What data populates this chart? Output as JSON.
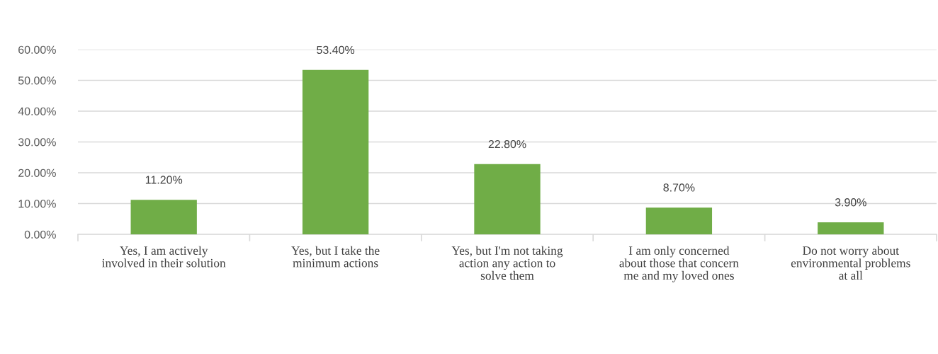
{
  "chart_data": {
    "type": "bar",
    "categories": [
      "Yes, I am actively\ninvolved in their solution",
      "Yes, but I take the\nminimum actions",
      "Yes, but I'm not taking\naction any action to\nsolve them",
      "I am only concerned\nabout those that concern\nme and my loved ones",
      "Do not worry about\nenvironmental problems\nat all"
    ],
    "values": [
      11.2,
      53.4,
      22.8,
      8.7,
      3.9
    ],
    "color": "#70ad47",
    "value_labels": [
      "11.20%",
      "53.40%",
      "22.80%",
      "8.70%",
      "3.90%"
    ],
    "ylim": [
      0,
      60
    ],
    "yticks": [
      {
        "value": 0,
        "label": "0.00%"
      },
      {
        "value": 10,
        "label": "10.00%"
      },
      {
        "value": 20,
        "label": "20.00%"
      },
      {
        "value": 30,
        "label": "30.00%"
      },
      {
        "value": 40,
        "label": "40.00%"
      },
      {
        "value": 50,
        "label": "50.00%"
      },
      {
        "value": 60,
        "label": "60.00%"
      }
    ],
    "grid": "y"
  }
}
